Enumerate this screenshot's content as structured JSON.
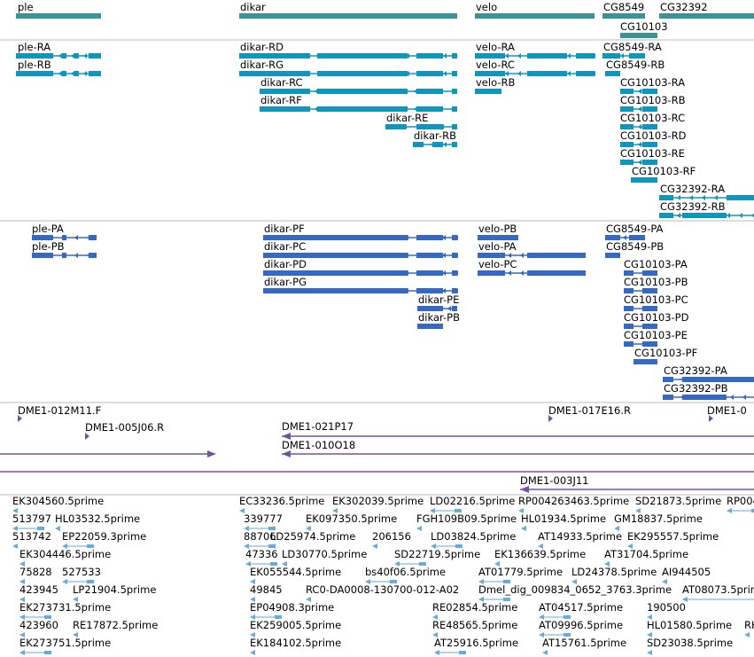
{
  "colors": {
    "gene": "#3a9496",
    "mrna_a": "#1195ba",
    "mrna_b": "#3569c8",
    "clone": "#7452a0",
    "est": "#6aaad8",
    "divider": "#bbbbbb"
  },
  "gene_track": [
    {
      "name": "ple"
    },
    {
      "name": "dikar"
    },
    {
      "name": "velo"
    },
    {
      "name": "CG8549"
    },
    {
      "name": "CG32392"
    },
    {
      "name": "CG10103"
    }
  ],
  "transcripts_a": [
    "ple-RA",
    "ple-RB",
    "dikar-RD",
    "dikar-RG",
    "dikar-RC",
    "dikar-RF",
    "dikar-RE",
    "dikar-RB",
    "velo-RA",
    "velo-RC",
    "velo-RB",
    "CG8549-RA",
    "CG8549-RB",
    "CG10103-RA",
    "CG10103-RB",
    "CG10103-RC",
    "CG10103-RD",
    "CG10103-RE",
    "CG10103-RF",
    "CG32392-RA",
    "CG32392-RB"
  ],
  "transcripts_b": [
    "ple-PA",
    "ple-PB",
    "dikar-PF",
    "dikar-PC",
    "dikar-PD",
    "dikar-PG",
    "dikar-PE",
    "dikar-PB",
    "velo-PB",
    "velo-PA",
    "velo-PC",
    "CG8549-PA",
    "CG8549-PB",
    "CG10103-PA",
    "CG10103-PB",
    "CG10103-PC",
    "CG10103-PD",
    "CG10103-PE",
    "CG10103-PF",
    "CG32392-PA",
    "CG32392-PB"
  ],
  "clones": [
    "DME1-012M11.F",
    "DME1-005J06.R",
    "DME1-021P17",
    "DME1-010O18",
    "DME1-017E16.R",
    "DME1-0",
    "DME1-003J11"
  ],
  "ests": [
    "EK304560.5prime",
    "513797",
    "HL03532.5prime",
    "513742",
    "EP22059.3prime",
    "EK304446.5prime",
    "75828",
    "527533",
    "423945",
    "LP21904.5prime",
    "EK273731.5prime",
    "423960",
    "RE17872.5prime",
    "EK273751.5prime",
    "EC33236.5prime",
    "EK302039.5prime",
    "339777",
    "EK097350.5prime",
    "FGH109B09.5prime",
    "88706",
    "LD25974.5prime",
    "206156",
    "47336",
    "LD30770.5prime",
    "EK055544.5prime",
    "bs40f06.5prime",
    "49845",
    "RC0-DA0008-130700-012-A02",
    "EP04908.3prime",
    "EK259005.5prime",
    "EK184102.5prime",
    "LD02216.5prime",
    "RP004263463.5prime",
    "SD21873.5prime",
    "RP004",
    "HL01934.5prime",
    "GM18837.5prime",
    "LD03824.5prime",
    "AT14933.5prime",
    "EK295557.5prime",
    "SD22719.5prime",
    "EK136639.5prime",
    "AT31704.5prime",
    "AT01779.5prime",
    "LD24378.5prime",
    "AI944505",
    "Dmel_dig_009834_0652_3763.3prime",
    "AT08073.5prime",
    "RE02854.5prime",
    "AT04517.5prime",
    "190500",
    "RE48565.5prime",
    "AT09996.5prime",
    "HL01580.5prime",
    "RH",
    "AT25916.5prime",
    "AT15761.5prime",
    "SD23038.5prime"
  ]
}
